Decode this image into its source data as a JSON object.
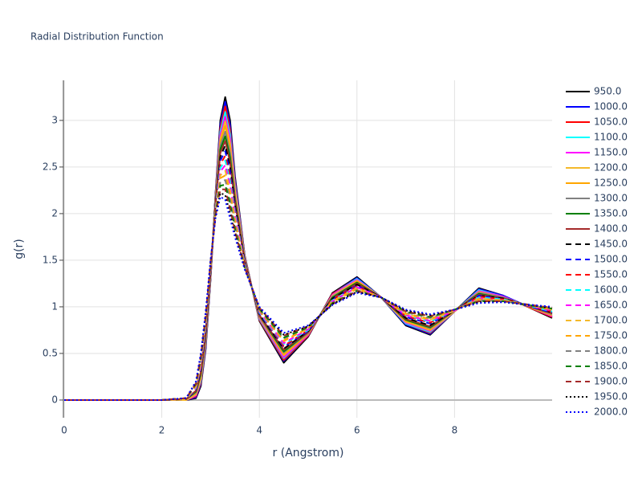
{
  "chart_data": {
    "type": "line",
    "title": "Radial Distribution Function",
    "x_label": "r (Angstrom)",
    "y_label": "g(r)",
    "xlim": [
      0,
      10
    ],
    "ylim": [
      -0.19,
      3.43
    ],
    "xticks": [
      0,
      2,
      4,
      6,
      8
    ],
    "yticks": [
      0,
      0.5,
      1,
      1.5,
      2,
      2.5,
      3
    ],
    "grid": true,
    "x": [
      0,
      2,
      2.5,
      2.7,
      2.8,
      2.9,
      3.0,
      3.1,
      3.2,
      3.3,
      3.4,
      3.5,
      3.7,
      4.0,
      4.5,
      5.0,
      5.5,
      6.0,
      6.5,
      7.0,
      7.5,
      8.0,
      8.5,
      9.0,
      10
    ],
    "series": [
      {
        "name": "950.0",
        "color": "#000000",
        "dash": "solid",
        "values": [
          0,
          0,
          0,
          0.02,
          0.15,
          0.55,
          1.3,
          2.2,
          3.0,
          3.25,
          3.0,
          2.4,
          1.55,
          0.85,
          0.4,
          0.68,
          1.15,
          1.32,
          1.1,
          0.8,
          0.7,
          0.95,
          1.2,
          1.12,
          0.88
        ]
      },
      {
        "name": "1000.0",
        "color": "#0000ff",
        "dash": "solid",
        "values": [
          0,
          0,
          0,
          0.03,
          0.17,
          0.57,
          1.31,
          2.19,
          2.96,
          3.2,
          2.95,
          2.37,
          1.54,
          0.86,
          0.42,
          0.69,
          1.14,
          1.31,
          1.1,
          0.81,
          0.71,
          0.95,
          1.19,
          1.12,
          0.89
        ]
      },
      {
        "name": "1050.0",
        "color": "#ff0000",
        "dash": "solid",
        "values": [
          0,
          0,
          0,
          0.04,
          0.18,
          0.59,
          1.32,
          2.18,
          2.92,
          3.15,
          2.9,
          2.34,
          1.54,
          0.86,
          0.43,
          0.69,
          1.14,
          1.3,
          1.1,
          0.82,
          0.72,
          0.95,
          1.18,
          1.11,
          0.89
        ]
      },
      {
        "name": "1100.0",
        "color": "#00ffff",
        "dash": "solid",
        "values": [
          0,
          0,
          0,
          0.05,
          0.2,
          0.61,
          1.33,
          2.16,
          2.88,
          3.09,
          2.85,
          2.31,
          1.53,
          0.87,
          0.45,
          0.7,
          1.13,
          1.3,
          1.1,
          0.82,
          0.73,
          0.95,
          1.18,
          1.11,
          0.9
        ]
      },
      {
        "name": "1150.0",
        "color": "#ff00ff",
        "dash": "solid",
        "values": [
          0,
          0,
          0,
          0.05,
          0.22,
          0.63,
          1.34,
          2.15,
          2.84,
          3.04,
          2.8,
          2.28,
          1.52,
          0.88,
          0.46,
          0.7,
          1.13,
          1.29,
          1.1,
          0.83,
          0.74,
          0.95,
          1.17,
          1.11,
          0.9
        ]
      },
      {
        "name": "1200.0",
        "color": "#f4b92b",
        "dash": "solid",
        "values": [
          0,
          0,
          0,
          0.06,
          0.23,
          0.65,
          1.35,
          2.14,
          2.8,
          2.99,
          2.75,
          2.25,
          1.51,
          0.89,
          0.48,
          0.71,
          1.12,
          1.28,
          1.1,
          0.84,
          0.75,
          0.95,
          1.16,
          1.1,
          0.91
        ]
      },
      {
        "name": "1250.0",
        "color": "#ffa500",
        "dash": "solid",
        "values": [
          0,
          0,
          0.01,
          0.07,
          0.25,
          0.66,
          1.36,
          2.13,
          2.77,
          2.94,
          2.7,
          2.21,
          1.51,
          0.89,
          0.49,
          0.71,
          1.11,
          1.27,
          1.1,
          0.85,
          0.76,
          0.96,
          1.15,
          1.1,
          0.91
        ]
      },
      {
        "name": "1300.0",
        "color": "#808080",
        "dash": "solid",
        "values": [
          0,
          0,
          0.01,
          0.08,
          0.27,
          0.68,
          1.37,
          2.12,
          2.73,
          2.88,
          2.65,
          2.18,
          1.5,
          0.9,
          0.51,
          0.72,
          1.11,
          1.26,
          1.1,
          0.86,
          0.77,
          0.96,
          1.15,
          1.1,
          0.92
        ]
      },
      {
        "name": "1350.0",
        "color": "#008000",
        "dash": "solid",
        "values": [
          0,
          0,
          0.01,
          0.09,
          0.28,
          0.7,
          1.38,
          2.1,
          2.69,
          2.83,
          2.6,
          2.15,
          1.49,
          0.91,
          0.52,
          0.73,
          1.1,
          1.26,
          1.1,
          0.86,
          0.78,
          0.96,
          1.14,
          1.09,
          0.93
        ]
      },
      {
        "name": "1400.0",
        "color": "#a52a2a",
        "dash": "solid",
        "values": [
          0,
          0,
          0.01,
          0.1,
          0.3,
          0.72,
          1.39,
          2.09,
          2.65,
          2.78,
          2.55,
          2.12,
          1.49,
          0.91,
          0.54,
          0.73,
          1.09,
          1.25,
          1.1,
          0.87,
          0.79,
          0.96,
          1.13,
          1.09,
          0.93
        ]
      },
      {
        "name": "1450.0",
        "color": "#000000",
        "dash": "dash",
        "values": [
          0,
          0,
          0.01,
          0.11,
          0.32,
          0.74,
          1.4,
          2.08,
          2.61,
          2.73,
          2.5,
          2.09,
          1.48,
          0.92,
          0.55,
          0.74,
          1.09,
          1.24,
          1.1,
          0.88,
          0.8,
          0.96,
          1.12,
          1.09,
          0.94
        ]
      },
      {
        "name": "1500.0",
        "color": "#0000ff",
        "dash": "dash",
        "values": [
          0,
          0,
          0.01,
          0.11,
          0.33,
          0.76,
          1.4,
          2.07,
          2.57,
          2.67,
          2.45,
          2.06,
          1.47,
          0.93,
          0.57,
          0.74,
          1.08,
          1.23,
          1.1,
          0.89,
          0.82,
          0.96,
          1.12,
          1.08,
          0.94
        ]
      },
      {
        "name": "1550.0",
        "color": "#ff0000",
        "dash": "dash",
        "values": [
          0,
          0,
          0.01,
          0.12,
          0.35,
          0.78,
          1.41,
          2.06,
          2.53,
          2.62,
          2.4,
          2.03,
          1.46,
          0.94,
          0.58,
          0.75,
          1.08,
          1.22,
          1.1,
          0.9,
          0.83,
          0.96,
          1.11,
          1.08,
          0.95
        ]
      },
      {
        "name": "1600.0",
        "color": "#00ffff",
        "dash": "dash",
        "values": [
          0,
          0,
          0.01,
          0.13,
          0.37,
          0.8,
          1.42,
          2.05,
          2.49,
          2.57,
          2.35,
          2.0,
          1.46,
          0.94,
          0.6,
          0.75,
          1.07,
          1.21,
          1.1,
          0.91,
          0.84,
          0.96,
          1.1,
          1.08,
          0.95
        ]
      },
      {
        "name": "1650.0",
        "color": "#ff00ff",
        "dash": "dash",
        "values": [
          0,
          0,
          0.01,
          0.14,
          0.38,
          0.82,
          1.43,
          2.03,
          2.45,
          2.52,
          2.3,
          1.97,
          1.45,
          0.95,
          0.61,
          0.76,
          1.06,
          1.21,
          1.1,
          0.91,
          0.85,
          0.96,
          1.09,
          1.07,
          0.96
        ]
      },
      {
        "name": "1700.0",
        "color": "#f4b92b",
        "dash": "dash",
        "values": [
          0,
          0,
          0.01,
          0.15,
          0.4,
          0.84,
          1.44,
          2.02,
          2.41,
          2.46,
          2.25,
          1.94,
          1.44,
          0.96,
          0.63,
          0.77,
          1.06,
          1.2,
          1.1,
          0.92,
          0.86,
          0.96,
          1.09,
          1.07,
          0.97
        ]
      },
      {
        "name": "1750.0",
        "color": "#ffa500",
        "dash": "dash",
        "values": [
          0,
          0,
          0.02,
          0.16,
          0.42,
          0.86,
          1.45,
          2.01,
          2.38,
          2.41,
          2.2,
          1.9,
          1.44,
          0.96,
          0.64,
          0.77,
          1.05,
          1.19,
          1.1,
          0.93,
          0.87,
          0.97,
          1.08,
          1.07,
          0.97
        ]
      },
      {
        "name": "1800.0",
        "color": "#808080",
        "dash": "dash",
        "values": [
          0,
          0,
          0.02,
          0.17,
          0.43,
          0.87,
          1.46,
          2.0,
          2.34,
          2.36,
          2.15,
          1.87,
          1.43,
          0.97,
          0.66,
          0.78,
          1.04,
          1.18,
          1.1,
          0.94,
          0.88,
          0.97,
          1.07,
          1.06,
          0.98
        ]
      },
      {
        "name": "1850.0",
        "color": "#008000",
        "dash": "dash",
        "values": [
          0,
          0,
          0.02,
          0.17,
          0.45,
          0.89,
          1.47,
          1.99,
          2.3,
          2.31,
          2.1,
          1.84,
          1.42,
          0.98,
          0.67,
          0.78,
          1.04,
          1.17,
          1.1,
          0.95,
          0.89,
          0.97,
          1.06,
          1.06,
          0.98
        ]
      },
      {
        "name": "1900.0",
        "color": "#a52a2a",
        "dash": "dash",
        "values": [
          0,
          0,
          0.02,
          0.18,
          0.47,
          0.91,
          1.48,
          1.97,
          2.26,
          2.26,
          2.05,
          1.81,
          1.42,
          0.99,
          0.69,
          0.79,
          1.03,
          1.17,
          1.1,
          0.95,
          0.9,
          0.97,
          1.06,
          1.06,
          0.99
        ]
      },
      {
        "name": "1950.0",
        "color": "#000000",
        "dash": "dot",
        "values": [
          0,
          0,
          0.02,
          0.19,
          0.48,
          0.93,
          1.49,
          1.96,
          2.22,
          2.2,
          2.0,
          1.78,
          1.41,
          0.99,
          0.7,
          0.79,
          1.03,
          1.16,
          1.1,
          0.96,
          0.91,
          0.97,
          1.05,
          1.05,
          0.99
        ]
      },
      {
        "name": "2000.0",
        "color": "#0000ff",
        "dash": "dot",
        "values": [
          0,
          0,
          0.02,
          0.2,
          0.5,
          0.95,
          1.5,
          1.95,
          2.18,
          2.15,
          1.95,
          1.75,
          1.4,
          1.0,
          0.72,
          0.8,
          1.02,
          1.15,
          1.1,
          0.97,
          0.92,
          0.97,
          1.04,
          1.05,
          1.0
        ]
      }
    ]
  }
}
